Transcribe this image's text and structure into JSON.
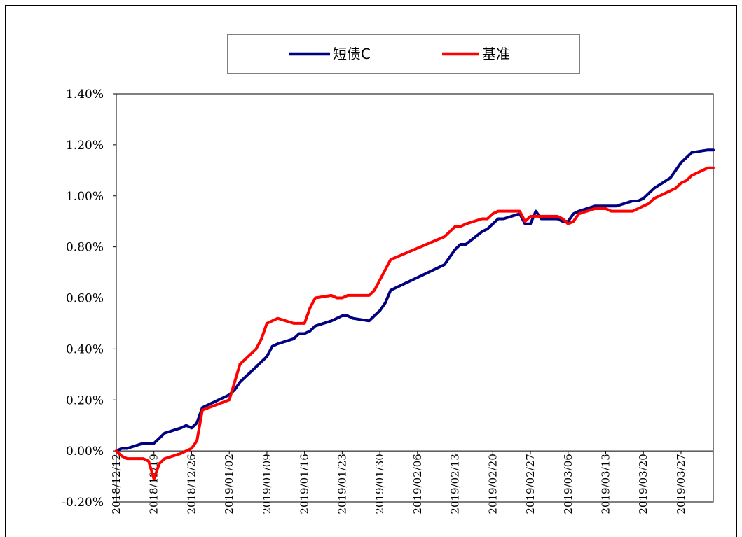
{
  "chart_data": {
    "type": "line",
    "title": "",
    "xlabel": "",
    "ylabel": "",
    "ylim": [
      -0.002,
      0.014
    ],
    "yticks": [
      "-0.20%",
      "0.00%",
      "0.20%",
      "0.40%",
      "0.60%",
      "0.80%",
      "1.00%",
      "1.20%",
      "1.40%"
    ],
    "xlim": [
      "2018/12/12",
      "2019/04/02"
    ],
    "xticks": [
      "2018/12/12",
      "2018/12/19",
      "2018/12/26",
      "2019/01/02",
      "2019/01/09",
      "2019/01/16",
      "2019/01/23",
      "2019/01/30",
      "2019/02/06",
      "2019/02/13",
      "2019/02/20",
      "2019/02/27",
      "2019/03/06",
      "2019/03/13",
      "2019/03/20",
      "2019/03/27"
    ],
    "grid": false,
    "legend_position": "top-center",
    "series": [
      {
        "name": "短债C",
        "color": "#000080",
        "points": [
          [
            "2018/12/12",
            0.0
          ],
          [
            "2018/12/13",
            0.0001
          ],
          [
            "2018/12/14",
            0.0001
          ],
          [
            "2018/12/17",
            0.0003
          ],
          [
            "2018/12/18",
            0.0003
          ],
          [
            "2018/12/19",
            0.0003
          ],
          [
            "2018/12/20",
            0.0005
          ],
          [
            "2018/12/21",
            0.0007
          ],
          [
            "2018/12/24",
            0.0009
          ],
          [
            "2018/12/25",
            0.001
          ],
          [
            "2018/12/26",
            0.0009
          ],
          [
            "2018/12/27",
            0.0011
          ],
          [
            "2018/12/28",
            0.0017
          ],
          [
            "2019/01/02",
            0.0022
          ],
          [
            "2019/01/03",
            0.0024
          ],
          [
            "2019/01/04",
            0.0027
          ],
          [
            "2019/01/07",
            0.0033
          ],
          [
            "2019/01/08",
            0.0035
          ],
          [
            "2019/01/09",
            0.0037
          ],
          [
            "2019/01/10",
            0.0041
          ],
          [
            "2019/01/11",
            0.0042
          ],
          [
            "2019/01/14",
            0.0044
          ],
          [
            "2019/01/15",
            0.0046
          ],
          [
            "2019/01/16",
            0.0046
          ],
          [
            "2019/01/17",
            0.0047
          ],
          [
            "2019/01/18",
            0.0049
          ],
          [
            "2019/01/21",
            0.0051
          ],
          [
            "2019/01/22",
            0.0052
          ],
          [
            "2019/01/23",
            0.0053
          ],
          [
            "2019/01/24",
            0.0053
          ],
          [
            "2019/01/25",
            0.0052
          ],
          [
            "2019/01/28",
            0.0051
          ],
          [
            "2019/01/29",
            0.0053
          ],
          [
            "2019/01/30",
            0.0055
          ],
          [
            "2019/01/31",
            0.0058
          ],
          [
            "2019/02/01",
            0.0063
          ],
          [
            "2019/02/11",
            0.0073
          ],
          [
            "2019/02/12",
            0.0076
          ],
          [
            "2019/02/13",
            0.0079
          ],
          [
            "2019/02/14",
            0.0081
          ],
          [
            "2019/02/15",
            0.0081
          ],
          [
            "2019/02/18",
            0.0086
          ],
          [
            "2019/02/19",
            0.0087
          ],
          [
            "2019/02/20",
            0.0089
          ],
          [
            "2019/02/21",
            0.0091
          ],
          [
            "2019/02/22",
            0.0091
          ],
          [
            "2019/02/25",
            0.0093
          ],
          [
            "2019/02/26",
            0.0089
          ],
          [
            "2019/02/27",
            0.0089
          ],
          [
            "2019/02/28",
            0.0094
          ],
          [
            "2019/03/01",
            0.0091
          ],
          [
            "2019/03/04",
            0.0091
          ],
          [
            "2019/03/05",
            0.009
          ],
          [
            "2019/03/06",
            0.009
          ],
          [
            "2019/03/07",
            0.0093
          ],
          [
            "2019/03/08",
            0.0094
          ],
          [
            "2019/03/11",
            0.0096
          ],
          [
            "2019/03/12",
            0.0096
          ],
          [
            "2019/03/13",
            0.0096
          ],
          [
            "2019/03/14",
            0.0096
          ],
          [
            "2019/03/15",
            0.0096
          ],
          [
            "2019/03/18",
            0.0098
          ],
          [
            "2019/03/19",
            0.0098
          ],
          [
            "2019/03/20",
            0.0099
          ],
          [
            "2019/03/21",
            0.0101
          ],
          [
            "2019/03/22",
            0.0103
          ],
          [
            "2019/03/25",
            0.0107
          ],
          [
            "2019/03/26",
            0.011
          ],
          [
            "2019/03/27",
            0.0113
          ],
          [
            "2019/03/28",
            0.0115
          ],
          [
            "2019/03/29",
            0.0117
          ],
          [
            "2019/04/01",
            0.0118
          ],
          [
            "2019/04/02",
            0.0118
          ]
        ]
      },
      {
        "name": "基准",
        "color": "#ff0000",
        "points": [
          [
            "2018/12/12",
            0.0
          ],
          [
            "2018/12/13",
            -0.0002
          ],
          [
            "2018/12/14",
            -0.0003
          ],
          [
            "2018/12/17",
            -0.0003
          ],
          [
            "2018/12/18",
            -0.0004
          ],
          [
            "2018/12/19",
            -0.0011
          ],
          [
            "2018/12/20",
            -0.0005
          ],
          [
            "2018/12/21",
            -0.0003
          ],
          [
            "2018/12/24",
            -0.0001
          ],
          [
            "2018/12/25",
            0.0
          ],
          [
            "2018/12/26",
            0.0001
          ],
          [
            "2018/12/27",
            0.0004
          ],
          [
            "2018/12/28",
            0.0016
          ],
          [
            "2019/01/02",
            0.002
          ],
          [
            "2019/01/03",
            0.0027
          ],
          [
            "2019/01/04",
            0.0034
          ],
          [
            "2019/01/07",
            0.004
          ],
          [
            "2019/01/08",
            0.0044
          ],
          [
            "2019/01/09",
            0.005
          ],
          [
            "2019/01/10",
            0.0051
          ],
          [
            "2019/01/11",
            0.0052
          ],
          [
            "2019/01/14",
            0.005
          ],
          [
            "2019/01/15",
            0.005
          ],
          [
            "2019/01/16",
            0.005
          ],
          [
            "2019/01/17",
            0.0056
          ],
          [
            "2019/01/18",
            0.006
          ],
          [
            "2019/01/21",
            0.0061
          ],
          [
            "2019/01/22",
            0.006
          ],
          [
            "2019/01/23",
            0.006
          ],
          [
            "2019/01/24",
            0.0061
          ],
          [
            "2019/01/25",
            0.0061
          ],
          [
            "2019/01/28",
            0.0061
          ],
          [
            "2019/01/29",
            0.0063
          ],
          [
            "2019/01/30",
            0.0067
          ],
          [
            "2019/01/31",
            0.0071
          ],
          [
            "2019/02/01",
            0.0075
          ],
          [
            "2019/02/11",
            0.0084
          ],
          [
            "2019/02/12",
            0.0086
          ],
          [
            "2019/02/13",
            0.0088
          ],
          [
            "2019/02/14",
            0.0088
          ],
          [
            "2019/02/15",
            0.0089
          ],
          [
            "2019/02/18",
            0.0091
          ],
          [
            "2019/02/19",
            0.0091
          ],
          [
            "2019/02/20",
            0.0093
          ],
          [
            "2019/02/21",
            0.0094
          ],
          [
            "2019/02/22",
            0.0094
          ],
          [
            "2019/02/25",
            0.0094
          ],
          [
            "2019/02/26",
            0.009
          ],
          [
            "2019/02/27",
            0.0092
          ],
          [
            "2019/02/28",
            0.0092
          ],
          [
            "2019/03/01",
            0.0092
          ],
          [
            "2019/03/04",
            0.0092
          ],
          [
            "2019/03/05",
            0.0091
          ],
          [
            "2019/03/06",
            0.0089
          ],
          [
            "2019/03/07",
            0.009
          ],
          [
            "2019/03/08",
            0.0093
          ],
          [
            "2019/03/11",
            0.0095
          ],
          [
            "2019/03/12",
            0.0095
          ],
          [
            "2019/03/13",
            0.0095
          ],
          [
            "2019/03/14",
            0.0094
          ],
          [
            "2019/03/15",
            0.0094
          ],
          [
            "2019/03/18",
            0.0094
          ],
          [
            "2019/03/19",
            0.0095
          ],
          [
            "2019/03/20",
            0.0096
          ],
          [
            "2019/03/21",
            0.0097
          ],
          [
            "2019/03/22",
            0.0099
          ],
          [
            "2019/03/25",
            0.0102
          ],
          [
            "2019/03/26",
            0.0103
          ],
          [
            "2019/03/27",
            0.0105
          ],
          [
            "2019/03/28",
            0.0106
          ],
          [
            "2019/03/29",
            0.0108
          ],
          [
            "2019/04/01",
            0.0111
          ],
          [
            "2019/04/02",
            0.0111
          ]
        ]
      }
    ]
  }
}
